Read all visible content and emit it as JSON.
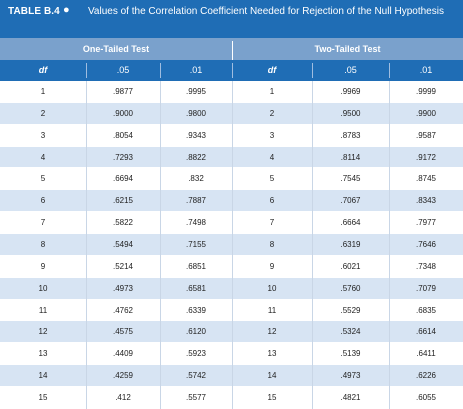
{
  "header": {
    "table_label": "TABLE B.4",
    "title": "Values of the Correlation Coefficient Needed for Rejection of the Null Hypothesis"
  },
  "groups": {
    "one_tailed": "One-Tailed Test",
    "two_tailed": "Two-Tailed Test"
  },
  "columns": [
    "df",
    ".05",
    ".01",
    "df",
    ".05",
    ".01"
  ],
  "colors": {
    "header_blue": "#1f6db5",
    "group_blue": "#7aa1cc",
    "row_alt": "#d7e4f3"
  },
  "rows": [
    [
      "1",
      ".9877",
      ".9995",
      "1",
      ".9969",
      ".9999"
    ],
    [
      "2",
      ".9000",
      ".9800",
      "2",
      ".9500",
      ".9900"
    ],
    [
      "3",
      ".8054",
      ".9343",
      "3",
      ".8783",
      ".9587"
    ],
    [
      "4",
      ".7293",
      ".8822",
      "4",
      ".8114",
      ".9172"
    ],
    [
      "5",
      ".6694",
      ".832",
      "5",
      ".7545",
      ".8745"
    ],
    [
      "6",
      ".6215",
      ".7887",
      "6",
      ".7067",
      ".8343"
    ],
    [
      "7",
      ".5822",
      ".7498",
      "7",
      ".6664",
      ".7977"
    ],
    [
      "8",
      ".5494",
      ".7155",
      "8",
      ".6319",
      ".7646"
    ],
    [
      "9",
      ".5214",
      ".6851",
      "9",
      ".6021",
      ".7348"
    ],
    [
      "10",
      ".4973",
      ".6581",
      "10",
      ".5760",
      ".7079"
    ],
    [
      "11",
      ".4762",
      ".6339",
      "11",
      ".5529",
      ".6835"
    ],
    [
      "12",
      ".4575",
      ".6120",
      "12",
      ".5324",
      ".6614"
    ],
    [
      "13",
      ".4409",
      ".5923",
      "13",
      ".5139",
      ".6411"
    ],
    [
      "14",
      ".4259",
      ".5742",
      "14",
      ".4973",
      ".6226"
    ],
    [
      "15",
      ".412",
      ".5577",
      "15",
      ".4821",
      ".6055"
    ]
  ]
}
